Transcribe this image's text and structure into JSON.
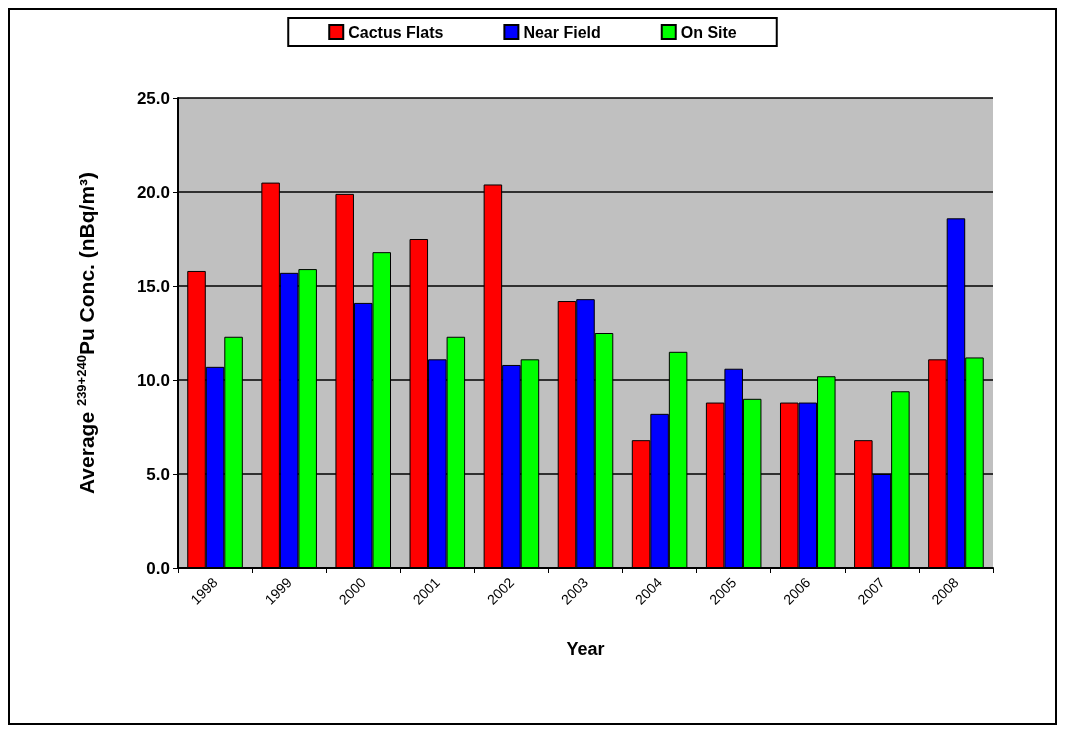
{
  "chart_data": {
    "type": "bar",
    "xlabel": "Year",
    "ylabel": "Average $^{239+240}$Pu Conc. (nBq/m³)",
    "categories": [
      "1998",
      "1999",
      "2000",
      "2001",
      "2002",
      "2003",
      "2004",
      "2005",
      "2006",
      "2007",
      "2008"
    ],
    "series": [
      {
        "name": "Cactus Flats",
        "color": "#ff0000",
        "values": [
          15.8,
          20.5,
          19.9,
          17.5,
          20.4,
          14.2,
          6.8,
          8.8,
          8.8,
          6.8,
          11.1
        ]
      },
      {
        "name": "Near Field",
        "color": "#0000ff",
        "values": [
          10.7,
          15.7,
          14.1,
          11.1,
          10.8,
          14.3,
          8.2,
          10.6,
          8.8,
          5.0,
          18.6
        ]
      },
      {
        "name": "On Site",
        "color": "#00ff00",
        "values": [
          12.3,
          15.9,
          16.8,
          12.3,
          11.1,
          12.5,
          11.5,
          9.0,
          10.2,
          9.4,
          11.2
        ]
      }
    ],
    "ylim": [
      0,
      25
    ],
    "yticks": [
      {
        "value": 0,
        "label": "0.0"
      },
      {
        "value": 5,
        "label": "5.0"
      },
      {
        "value": 10,
        "label": "10.0"
      },
      {
        "value": 15,
        "label": "15.0"
      },
      {
        "value": 20,
        "label": "20.0"
      },
      {
        "value": 25,
        "label": "25.0"
      }
    ],
    "grid": "y",
    "legend": "top"
  }
}
